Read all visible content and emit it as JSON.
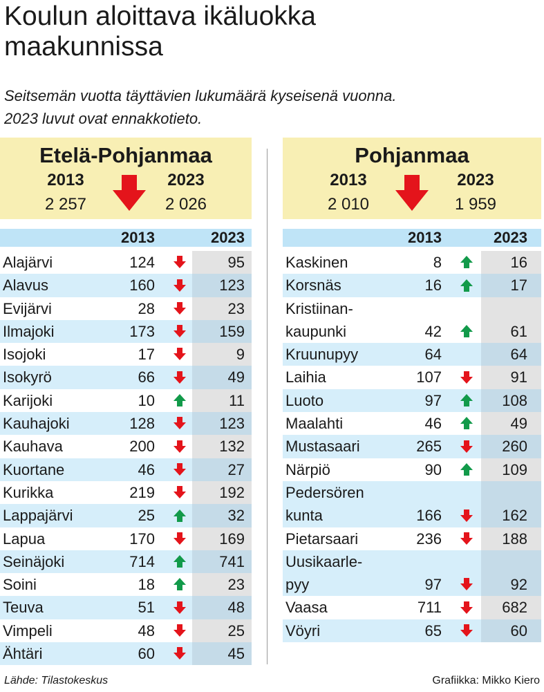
{
  "title": "Koulun aloittava ikäluokka\nmaakunnissa",
  "subtitle": "Seitsemän vuotta täyttävien lukumäärä kyseisenä vuonna.\n2023 luvut ovat ennakkotieto.",
  "source": "Lähde: Tilastokeskus",
  "credit": "Grafiikka: Mikko Kiero",
  "colors": {
    "summary_bg": "#f8efb4",
    "header_bg": "#bfe4f7",
    "alt_row": "#d6eefa",
    "down": "#e4141b",
    "up": "#129a4a"
  },
  "chart_data": [
    {
      "type": "table",
      "region": "Etelä-Pohjanmaa",
      "year_a": "2013",
      "year_b": "2023",
      "total_a": "2 257",
      "total_b": "2 026",
      "total_trend": "down",
      "columns": [
        "",
        "2013",
        "2023"
      ],
      "rows": [
        {
          "name": "Alajärvi",
          "v2013": 124,
          "v2023": 95,
          "trend": "down"
        },
        {
          "name": "Alavus",
          "v2013": 160,
          "v2023": 123,
          "trend": "down"
        },
        {
          "name": "Evijärvi",
          "v2013": 28,
          "v2023": 23,
          "trend": "down"
        },
        {
          "name": "Ilmajoki",
          "v2013": 173,
          "v2023": 159,
          "trend": "down"
        },
        {
          "name": "Isojoki",
          "v2013": 17,
          "v2023": 9,
          "trend": "down"
        },
        {
          "name": "Isokyrö",
          "v2013": 66,
          "v2023": 49,
          "trend": "down"
        },
        {
          "name": "Karijoki",
          "v2013": 10,
          "v2023": 11,
          "trend": "up"
        },
        {
          "name": "Kauhajoki",
          "v2013": 128,
          "v2023": 123,
          "trend": "down"
        },
        {
          "name": "Kauhava",
          "v2013": 200,
          "v2023": 132,
          "trend": "down"
        },
        {
          "name": "Kuortane",
          "v2013": 46,
          "v2023": 27,
          "trend": "down"
        },
        {
          "name": "Kurikka",
          "v2013": 219,
          "v2023": 192,
          "trend": "down"
        },
        {
          "name": "Lappajärvi",
          "v2013": 25,
          "v2023": 32,
          "trend": "up"
        },
        {
          "name": "Lapua",
          "v2013": 170,
          "v2023": 169,
          "trend": "down"
        },
        {
          "name": "Seinäjoki",
          "v2013": 714,
          "v2023": 741,
          "trend": "up"
        },
        {
          "name": "Soini",
          "v2013": 18,
          "v2023": 23,
          "trend": "up"
        },
        {
          "name": "Teuva",
          "v2013": 51,
          "v2023": 48,
          "trend": "down"
        },
        {
          "name": "Vimpeli",
          "v2013": 48,
          "v2023": 25,
          "trend": "down"
        },
        {
          "name": "Ähtäri",
          "v2013": 60,
          "v2023": 45,
          "trend": "down"
        }
      ]
    },
    {
      "type": "table",
      "region": "Pohjanmaa",
      "year_a": "2013",
      "year_b": "2023",
      "total_a": "2 010",
      "total_b": "1 959",
      "total_trend": "down",
      "columns": [
        "",
        "2013",
        "2023"
      ],
      "rows": [
        {
          "name": "Kaskinen",
          "v2013": 8,
          "v2023": 16,
          "trend": "up"
        },
        {
          "name": "Korsnäs",
          "v2013": 16,
          "v2023": 17,
          "trend": "up"
        },
        {
          "name": "Kristiinan-",
          "name2": "kaupunki",
          "v2013": 42,
          "v2023": 61,
          "trend": "up"
        },
        {
          "name": "Kruunupyy",
          "v2013": 64,
          "v2023": 64,
          "trend": "none"
        },
        {
          "name": "Laihia",
          "v2013": 107,
          "v2023": 91,
          "trend": "down"
        },
        {
          "name": "Luoto",
          "v2013": 97,
          "v2023": 108,
          "trend": "up"
        },
        {
          "name": "Maalahti",
          "v2013": 46,
          "v2023": 49,
          "trend": "up"
        },
        {
          "name": "Mustasaari",
          "v2013": 265,
          "v2023": 260,
          "trend": "down"
        },
        {
          "name": "Närpiö",
          "v2013": 90,
          "v2023": 109,
          "trend": "up"
        },
        {
          "name": "Pedersören",
          "name2": "kunta",
          "v2013": 166,
          "v2023": 162,
          "trend": "down"
        },
        {
          "name": "Pietarsaari",
          "v2013": 236,
          "v2023": 188,
          "trend": "down"
        },
        {
          "name": "Uusikaarle-",
          "name2": "pyy",
          "v2013": 97,
          "v2023": 92,
          "trend": "down"
        },
        {
          "name": "Vaasa",
          "v2013": 711,
          "v2023": 682,
          "trend": "down"
        },
        {
          "name": "Vöyri",
          "v2013": 65,
          "v2023": 60,
          "trend": "down"
        }
      ]
    }
  ]
}
